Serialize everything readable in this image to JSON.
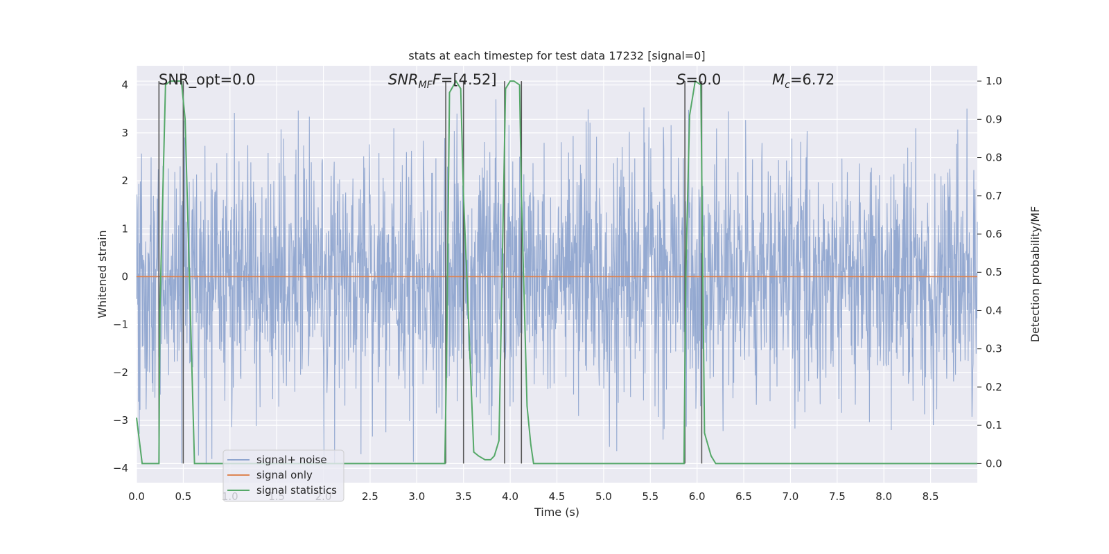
{
  "chart_data": {
    "type": "line",
    "title": "stats at each timestep for test data 17232 [signal=0]",
    "xlabel": "Time (s)",
    "ylabel": "Whitened strain",
    "ylabel_right": "Detection probability/MF",
    "xlim": [
      0.0,
      9.0
    ],
    "ylim": [
      -4.3,
      4.4
    ],
    "ylim_right": [
      -0.05,
      1.04
    ],
    "grid": true,
    "legend_position": "lower-left",
    "x_ticks": [
      "0.0",
      "0.5",
      "1.0",
      "1.5",
      "2.0",
      "2.5",
      "3.0",
      "3.5",
      "4.0",
      "4.5",
      "5.0",
      "5.5",
      "6.0",
      "6.5",
      "7.0",
      "7.5",
      "8.0",
      "8.5"
    ],
    "y_ticks": [
      "−4",
      "−3",
      "−2",
      "−1",
      "0",
      "1",
      "2",
      "3",
      "4"
    ],
    "y_ticks_right": [
      "0.0",
      "0.1",
      "0.2",
      "0.3",
      "0.4",
      "0.5",
      "0.6",
      "0.7",
      "0.8",
      "0.9",
      "1.0"
    ],
    "colors": {
      "noise": "#8fa5cf",
      "signal_only": "#dd8452",
      "statistics": "#55a868",
      "marker_lines": "#555555",
      "background": "#eaeaf2"
    },
    "series": [
      {
        "name": "signal+ noise",
        "kind": "noise_trace",
        "approx_std": 1.0,
        "approx_range": [
          -3.9,
          3.7
        ]
      },
      {
        "name": "signal only",
        "values_constant": 0.0
      },
      {
        "name": "signal statistics",
        "x": [
          0.0,
          0.06,
          0.12,
          0.24,
          0.25,
          0.31,
          0.36,
          0.48,
          0.52,
          0.62,
          0.72,
          1.0,
          3.3,
          3.32,
          3.35,
          3.42,
          3.47,
          3.5,
          3.55,
          3.61,
          3.66,
          3.73,
          3.79,
          3.83,
          3.88,
          3.95,
          4.0,
          4.04,
          4.1,
          4.12,
          4.18,
          4.22,
          4.25,
          4.35,
          5.86,
          5.88,
          5.92,
          5.98,
          6.04,
          6.08,
          6.15,
          6.2,
          9.0
        ],
        "values": [
          0.12,
          0.0,
          0.0,
          0.0,
          0.4,
          0.99,
          1.0,
          1.0,
          0.9,
          0.0,
          0.0,
          0.0,
          0.0,
          0.3,
          0.97,
          1.0,
          0.98,
          0.7,
          0.4,
          0.03,
          0.02,
          0.01,
          0.01,
          0.02,
          0.06,
          0.98,
          1.0,
          1.0,
          0.99,
          0.7,
          0.15,
          0.05,
          0.0,
          0.0,
          0.0,
          0.5,
          0.91,
          1.0,
          0.99,
          0.08,
          0.02,
          0.0,
          0.0
        ]
      }
    ],
    "vertical_markers": [
      0.24,
      0.5,
      3.31,
      3.5,
      3.94,
      4.12,
      5.87,
      6.05
    ],
    "annotations": [
      {
        "text": "SNR_opt=0.0"
      },
      {
        "main": "SNR",
        "sub": "MF",
        "rest": "=[4.52]"
      },
      {
        "main": "S",
        "rest": "=0.0"
      },
      {
        "main": "M",
        "sub": "c",
        "rest": "=6.72"
      }
    ],
    "legend": [
      "signal+ noise",
      "signal only",
      "signal statistics"
    ]
  }
}
